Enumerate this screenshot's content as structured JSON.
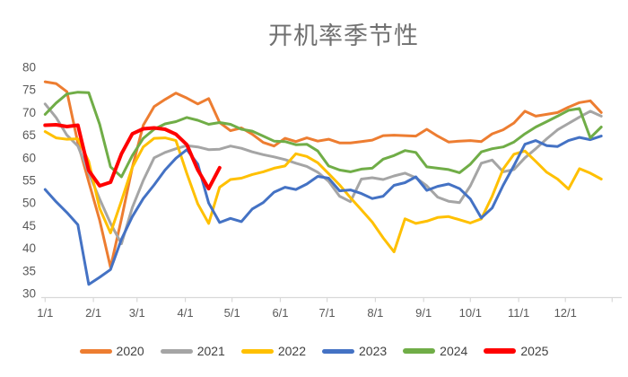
{
  "title": "开机率季节性",
  "colors": {
    "axis_line": "#d9d9d9",
    "tick_text": "#595959",
    "legend_text": "#404040",
    "title_text": "#707070"
  },
  "chart_data": {
    "type": "line",
    "title": "开机率季节性",
    "xlabel": "",
    "ylabel": "",
    "ylim": [
      30,
      80
    ],
    "grid": false,
    "legend_position": "bottom",
    "x_unit": "weekly points, Jan 1 to Dec 31",
    "x_tick_labels": [
      "1/1",
      "2/1",
      "3/1",
      "4/1",
      "5/1",
      "6/1",
      "7/1",
      "8/1",
      "9/1",
      "10/1",
      "11/1",
      "12/1"
    ],
    "x_tick_days": [
      0,
      31,
      59,
      90,
      120,
      151,
      181,
      212,
      243,
      273,
      304,
      334
    ],
    "y_ticks": [
      30,
      35,
      40,
      45,
      50,
      55,
      60,
      65,
      70,
      75,
      80
    ],
    "series": [
      {
        "name": "2020",
        "color": "#ED7D31",
        "width": 3,
        "values": [
          76.8,
          76.4,
          74.6,
          63.3,
          54.7,
          46.2,
          35.8,
          46.5,
          57.9,
          67.2,
          71.3,
          72.9,
          74.3,
          73.2,
          71.9,
          73.1,
          67.8,
          66.0,
          66.6,
          65.2,
          63.4,
          62.6,
          64.3,
          63.6,
          64.4,
          63.7,
          64.1,
          63.3,
          63.3,
          63.6,
          63.9,
          64.9,
          65.0,
          64.9,
          64.8,
          66.3,
          64.8,
          63.5,
          63.7,
          63.8,
          63.6,
          65.3,
          66.2,
          67.7,
          70.3,
          69.2,
          69.6,
          70.0,
          71.2,
          72.2,
          72.6,
          70.0
        ]
      },
      {
        "name": "2021",
        "color": "#A5A5A5",
        "width": 3,
        "values": [
          71.9,
          68.9,
          65.0,
          62.6,
          56.6,
          50.9,
          45.5,
          41.0,
          49.0,
          55.0,
          60.0,
          61.2,
          62.0,
          62.7,
          62.4,
          61.8,
          61.9,
          62.6,
          62.1,
          61.3,
          60.7,
          60.2,
          59.6,
          58.8,
          58.1,
          56.8,
          54.8,
          51.5,
          50.3,
          55.3,
          55.6,
          55.2,
          56.0,
          56.6,
          55.6,
          53.8,
          51.3,
          50.4,
          50.1,
          53.8,
          58.8,
          59.5,
          56.9,
          57.4,
          60.0,
          62.0,
          64.2,
          66.2,
          67.6,
          69.0,
          70.3,
          69.2
        ]
      },
      {
        "name": "2022",
        "color": "#FFC000",
        "width": 3,
        "values": [
          65.8,
          64.4,
          64.1,
          64.2,
          59.2,
          48.8,
          43.4,
          50.5,
          57.9,
          62.4,
          64.3,
          64.4,
          63.8,
          56.5,
          49.8,
          45.5,
          53.5,
          55.2,
          55.5,
          56.3,
          56.9,
          57.7,
          58.2,
          60.9,
          60.3,
          58.9,
          56.5,
          54.0,
          51.2,
          48.5,
          45.8,
          42.3,
          39.2,
          46.5,
          45.5,
          46.0,
          46.8,
          47.0,
          46.3,
          45.6,
          46.5,
          51.5,
          57.5,
          60.8,
          61.5,
          59.2,
          56.8,
          55.3,
          53.1,
          57.6,
          56.6,
          55.3
        ]
      },
      {
        "name": "2023",
        "color": "#4472C4",
        "width": 3,
        "values": [
          53.0,
          50.3,
          47.9,
          45.2,
          32.0,
          33.6,
          35.3,
          42.0,
          47.0,
          51.0,
          54.0,
          57.3,
          59.9,
          61.8,
          58.6,
          50.0,
          45.7,
          46.6,
          45.9,
          48.7,
          50.1,
          52.4,
          53.5,
          53.0,
          54.2,
          55.9,
          55.5,
          52.7,
          52.9,
          52.1,
          51.0,
          51.5,
          53.9,
          54.5,
          55.8,
          52.8,
          53.7,
          54.2,
          53.2,
          50.9,
          46.7,
          48.9,
          53.9,
          58.3,
          63.0,
          63.8,
          62.7,
          62.5,
          63.8,
          64.5,
          64.0,
          64.8
        ]
      },
      {
        "name": "2024",
        "color": "#70AD47",
        "width": 3,
        "values": [
          69.6,
          72.1,
          74.1,
          74.5,
          74.4,
          67.4,
          58.0,
          55.8,
          60.5,
          64.3,
          66.3,
          67.5,
          68.0,
          68.9,
          68.3,
          67.4,
          67.8,
          67.4,
          66.3,
          65.9,
          64.8,
          63.7,
          63.6,
          62.9,
          63.0,
          61.5,
          58.2,
          57.3,
          56.9,
          57.5,
          57.7,
          59.7,
          60.5,
          61.6,
          61.2,
          58.0,
          57.7,
          57.4,
          56.7,
          58.6,
          61.3,
          62.0,
          62.4,
          63.5,
          65.3,
          66.8,
          68.0,
          69.2,
          70.5,
          70.9,
          64.4,
          66.8
        ]
      },
      {
        "name": "2025",
        "color": "#FF0000",
        "width": 4,
        "values": [
          67.2,
          67.3,
          66.9,
          67.2,
          57.2,
          53.8,
          54.6,
          60.9,
          65.3,
          66.4,
          66.6,
          66.3,
          65.2,
          62.9,
          57.3,
          53.2,
          57.8
        ]
      }
    ]
  },
  "legend": {
    "items": [
      {
        "label": "2020",
        "color": "#ED7D31",
        "thick": 5
      },
      {
        "label": "2021",
        "color": "#A5A5A5",
        "thick": 5
      },
      {
        "label": "2022",
        "color": "#FFC000",
        "thick": 5
      },
      {
        "label": "2023",
        "color": "#4472C4",
        "thick": 5
      },
      {
        "label": "2024",
        "color": "#70AD47",
        "thick": 6
      },
      {
        "label": "2025",
        "color": "#FF0000",
        "thick": 6
      }
    ]
  }
}
